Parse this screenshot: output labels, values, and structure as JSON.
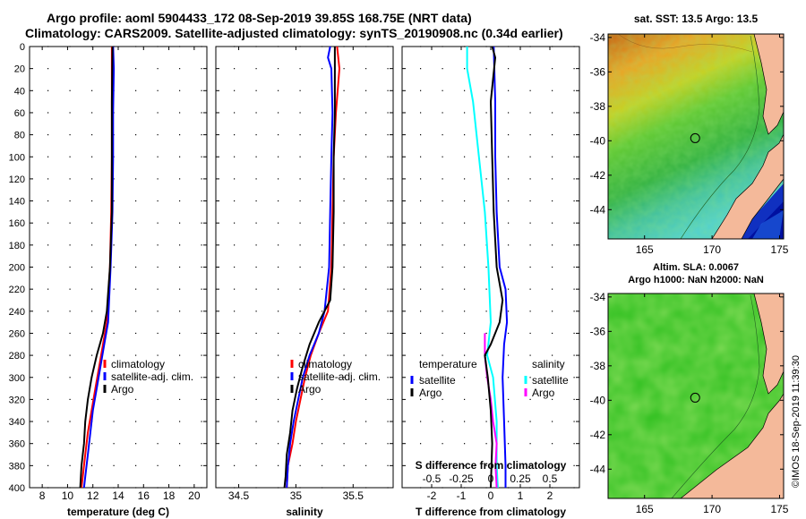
{
  "header": {
    "line1": "Argo profile: aoml 5904433_172 08-Sep-2019 39.85S 168.75E (NRT data)",
    "line2": "Climatology: CARS2009. Satellite-adjusted climatology: synTS_20190908.nc (0.34d earlier)"
  },
  "colors": {
    "climatology": "#ff0000",
    "satellite": "#0000ff",
    "argo": "#000000",
    "salinity_satellite": "#00ffff",
    "salinity_argo": "#ff00ff",
    "land": "#f4b99a"
  },
  "chart_data": [
    {
      "id": "temperature",
      "type": "line",
      "xlabel": "temperature (deg C)",
      "ylabel": "",
      "xlim": [
        7,
        21
      ],
      "ylim": [
        400,
        0
      ],
      "xticks": [
        "8",
        "10",
        "12",
        "14",
        "16",
        "18",
        "20"
      ],
      "yticks": [
        "0",
        "20",
        "40",
        "60",
        "80",
        "100",
        "120",
        "140",
        "160",
        "180",
        "200",
        "220",
        "240",
        "260",
        "280",
        "300",
        "320",
        "340",
        "360",
        "380",
        "400"
      ],
      "legend": [
        "climatology",
        "satellite-adj. clim.",
        "Argo"
      ],
      "series": [
        {
          "name": "climatology",
          "depth": [
            0,
            50,
            100,
            150,
            200,
            250,
            270,
            290,
            310,
            330,
            350,
            370,
            390,
            400
          ],
          "values": [
            13.5,
            13.5,
            13.5,
            13.45,
            13.35,
            13.1,
            12.8,
            12.5,
            12.2,
            11.9,
            11.6,
            11.4,
            11.2,
            11.1
          ]
        },
        {
          "name": "satellite-adj. clim.",
          "depth": [
            0,
            20,
            60,
            100,
            150,
            200,
            250,
            270,
            290,
            310,
            330,
            350,
            370,
            390,
            400
          ],
          "values": [
            13.6,
            13.65,
            13.6,
            13.6,
            13.55,
            13.4,
            13.2,
            12.9,
            12.6,
            12.3,
            12.0,
            11.8,
            11.6,
            11.4,
            11.3
          ]
        },
        {
          "name": "Argo",
          "depth": [
            0,
            50,
            100,
            150,
            200,
            240,
            260,
            280,
            300,
            320,
            340,
            360,
            380,
            400
          ],
          "values": [
            13.55,
            13.5,
            13.5,
            13.5,
            13.35,
            13.1,
            12.8,
            12.3,
            11.9,
            11.6,
            11.4,
            11.3,
            11.1,
            11.0
          ]
        }
      ]
    },
    {
      "id": "salinity",
      "type": "line",
      "xlabel": "salinity",
      "ylabel": "",
      "xlim": [
        34.3,
        35.85
      ],
      "ylim": [
        400,
        0
      ],
      "xticks": [
        "34.5",
        "35",
        "35.5"
      ],
      "legend": [
        "climatology",
        "satellite-adj. clim.",
        "Argo"
      ],
      "series": [
        {
          "name": "climatology",
          "depth": [
            0,
            20,
            60,
            100,
            150,
            200,
            240,
            260,
            280,
            300,
            320,
            340,
            360,
            380,
            400
          ],
          "values": [
            35.36,
            35.38,
            35.35,
            35.33,
            35.32,
            35.31,
            35.28,
            35.2,
            35.13,
            35.08,
            35.04,
            35.0,
            34.97,
            34.93,
            34.92
          ]
        },
        {
          "name": "satellite-adj. clim.",
          "depth": [
            0,
            10,
            20,
            60,
            100,
            150,
            200,
            240,
            260,
            280,
            300,
            320,
            340,
            360,
            380,
            400
          ],
          "values": [
            35.3,
            35.28,
            35.31,
            35.32,
            35.31,
            35.3,
            35.29,
            35.25,
            35.2,
            35.12,
            35.06,
            35.02,
            34.98,
            34.95,
            34.93,
            34.92
          ]
        },
        {
          "name": "Argo",
          "depth": [
            0,
            20,
            60,
            100,
            150,
            200,
            230,
            250,
            270,
            290,
            310,
            330,
            350,
            370,
            390,
            400
          ],
          "values": [
            35.34,
            35.34,
            35.34,
            35.33,
            35.33,
            35.32,
            35.3,
            35.2,
            35.12,
            35.06,
            35.01,
            34.97,
            34.95,
            34.92,
            34.91,
            34.9
          ]
        }
      ]
    },
    {
      "id": "difference",
      "type": "line",
      "xlabel": "T difference from climatology",
      "xlabel2": "S difference from climatology",
      "xlim": [
        -3,
        3
      ],
      "ylim": [
        400,
        0
      ],
      "xticks": [
        "-2",
        "-1",
        "0",
        "1",
        "2"
      ],
      "xticks2": [
        "-0.5",
        "-0.25",
        "0",
        "0.25",
        "0.5"
      ],
      "legend_left_title": "temperature",
      "legend_left": [
        "satellite",
        "Argo"
      ],
      "legend_right_title": "salinity",
      "legend_right": [
        "satellite",
        "Argo"
      ],
      "series": [
        {
          "name": "T satellite",
          "depth": [
            0,
            50,
            100,
            150,
            200,
            220,
            250,
            270,
            300,
            340,
            380,
            400
          ],
          "values": [
            0.1,
            0.15,
            0.15,
            0.2,
            0.3,
            0.5,
            0.55,
            0.45,
            0.4,
            0.45,
            0.5,
            0.5
          ]
        },
        {
          "name": "T Argo",
          "depth": [
            0,
            10,
            50,
            100,
            150,
            200,
            230,
            250,
            270,
            280,
            300,
            330,
            360,
            400
          ],
          "values": [
            0.05,
            0.15,
            0.0,
            0.05,
            0.1,
            0.2,
            0.4,
            0.3,
            0.0,
            -0.2,
            -0.1,
            0.0,
            0.05,
            0.0
          ]
        },
        {
          "name": "S satellite",
          "depth": [
            0,
            20,
            50,
            100,
            150,
            200,
            250,
            280,
            300,
            340,
            380,
            400
          ],
          "values": [
            -0.2,
            -0.2,
            -0.15,
            -0.1,
            -0.05,
            -0.02,
            0.0,
            -0.03,
            0.02,
            0.05,
            0.05,
            0.06
          ]
        },
        {
          "name": "S Argo",
          "depth": [
            260,
            280,
            300,
            320,
            340,
            360,
            380,
            400
          ],
          "values": [
            -0.05,
            -0.05,
            -0.03,
            0.0,
            0.02,
            0.05,
            0.04,
            0.05
          ]
        }
      ]
    }
  ],
  "sst_map": {
    "title": "sat. SST: 13.5 Argo: 13.5",
    "yticks": [
      "-34",
      "-36",
      "-38",
      "-40",
      "-42",
      "-44"
    ],
    "xticks": [
      "165",
      "170",
      "175"
    ],
    "marker": {
      "lon": 168.75,
      "lat": -39.85
    }
  },
  "sla_map": {
    "title1": "Altim. SLA: 0.0067",
    "title2": "Argo h1000: NaN h2000: NaN",
    "yticks": [
      "-34",
      "-36",
      "-38",
      "-40",
      "-42",
      "-44"
    ],
    "xticks": [
      "165",
      "170",
      "175"
    ],
    "marker": {
      "lon": 168.75,
      "lat": -39.85
    }
  },
  "credit": "©IMOS 18-Sep-2019 11:39:30"
}
